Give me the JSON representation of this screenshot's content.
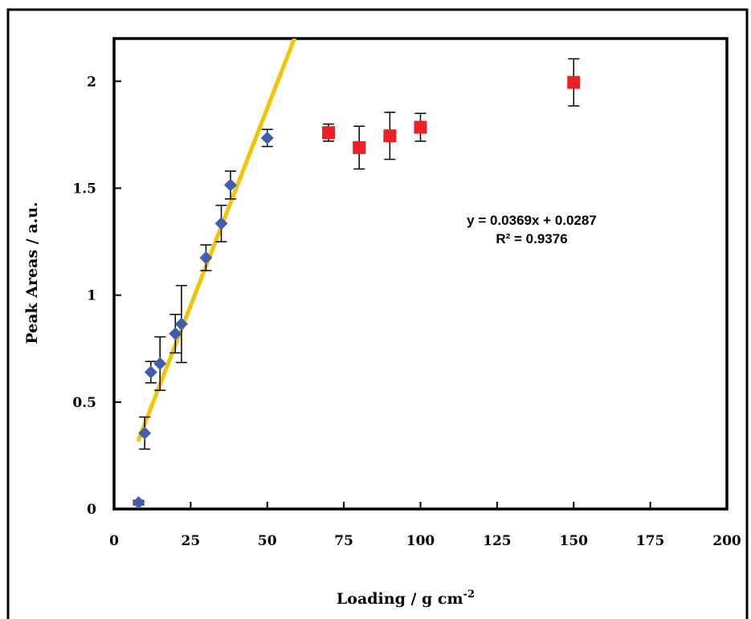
{
  "chart_data": {
    "type": "scatter",
    "xlabel": "Loading /  g cm",
    "xlabel_sup": "-2",
    "ylabel": "Peak Areas / a.u.",
    "xlim": [
      0,
      200
    ],
    "ylim": [
      0,
      2.2
    ],
    "x_ticks": [
      "0",
      "25",
      "50",
      "75",
      "100",
      "125",
      "150",
      "175",
      "200"
    ],
    "y_ticks": [
      "0",
      "0.5",
      "1",
      "1.5",
      "2"
    ],
    "grid": false,
    "legend": "none",
    "series": [
      {
        "marker": "diamond",
        "color": "#3f5fae",
        "points": [
          {
            "x": 8,
            "y": 0.03,
            "err": 0.01
          },
          {
            "x": 10,
            "y": 0.355,
            "err": 0.075
          },
          {
            "x": 12,
            "y": 0.64,
            "err": 0.05
          },
          {
            "x": 15,
            "y": 0.68,
            "err": 0.125
          },
          {
            "x": 20,
            "y": 0.82,
            "err": 0.09
          },
          {
            "x": 22,
            "y": 0.865,
            "err": 0.18
          },
          {
            "x": 30,
            "y": 1.175,
            "err": 0.06
          },
          {
            "x": 35,
            "y": 1.335,
            "err": 0.085
          },
          {
            "x": 38,
            "y": 1.515,
            "err": 0.065
          },
          {
            "x": 50,
            "y": 1.735,
            "err": 0.04
          }
        ]
      },
      {
        "marker": "square",
        "color": "#ee2024",
        "points": [
          {
            "x": 70,
            "y": 1.76,
            "err": 0.04
          },
          {
            "x": 80,
            "y": 1.69,
            "err": 0.1
          },
          {
            "x": 90,
            "y": 1.745,
            "err": 0.11
          },
          {
            "x": 100,
            "y": 1.785,
            "err": 0.065
          },
          {
            "x": 150,
            "y": 1.995,
            "err": 0.11
          }
        ]
      }
    ],
    "trendline": {
      "color": "#f5c400",
      "slope": 0.0369,
      "intercept": 0.0287,
      "x_start": 8,
      "x_end": 60,
      "equation": "y = 0.0369x + 0.0287",
      "r_squared": "R² = 0.9376"
    }
  }
}
